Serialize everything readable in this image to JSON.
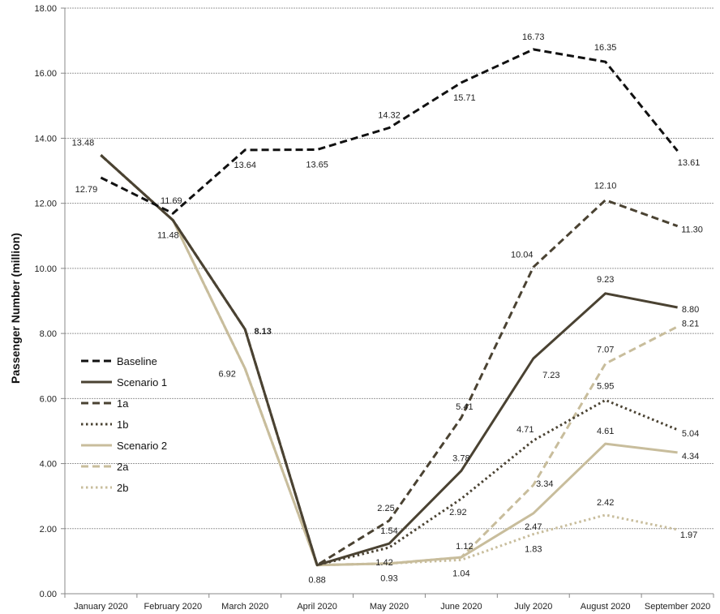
{
  "chart_data": {
    "type": "line",
    "title": "",
    "xlabel": "",
    "ylabel": "Passenger Number (million)",
    "categories": [
      "January 2020",
      "February 2020",
      "March 2020",
      "April 2020",
      "May 2020",
      "June 2020",
      "July 2020",
      "August 2020",
      "September 2020"
    ],
    "ylim": [
      0,
      18
    ],
    "yticks": [
      "0.00",
      "2.00",
      "4.00",
      "6.00",
      "8.00",
      "10.00",
      "12.00",
      "14.00",
      "16.00",
      "18.00"
    ],
    "grid": true,
    "legend_position": "left-middle",
    "series": [
      {
        "name": "Baseline",
        "color": "#111111",
        "dash": "dashed",
        "values": [
          12.79,
          11.69,
          13.64,
          13.65,
          14.32,
          15.71,
          16.73,
          16.35,
          13.61
        ],
        "labels": [
          "12.79",
          "11.69",
          "13.64",
          "13.65",
          "14.32",
          "15.71",
          "16.73",
          "16.35",
          "13.61"
        ]
      },
      {
        "name": "Scenario 1",
        "color": "#4a4232",
        "dash": "solid",
        "values": [
          13.48,
          11.48,
          8.13,
          0.88,
          1.54,
          3.78,
          7.23,
          9.23,
          8.8
        ],
        "labels": [
          "13.48",
          "11.48",
          "8.13",
          "0.88",
          "1.54",
          "3.78",
          "7.23",
          "9.23",
          "8.80"
        ]
      },
      {
        "name": "1a",
        "color": "#4a4232",
        "dash": "dashed",
        "values": [
          13.48,
          11.48,
          8.13,
          0.88,
          2.25,
          5.41,
          10.04,
          12.1,
          11.3
        ],
        "labels": [
          "",
          "",
          "",
          "",
          "2.25",
          "5.41",
          "10.04",
          "12.10",
          "11.30"
        ]
      },
      {
        "name": "1b",
        "color": "#4a4232",
        "dash": "dotted",
        "values": [
          13.48,
          11.48,
          8.13,
          0.88,
          1.42,
          2.92,
          4.71,
          5.95,
          5.04
        ],
        "labels": [
          "",
          "",
          "",
          "",
          "1.42",
          "2.92",
          "4.71",
          "5.95",
          "5.04"
        ]
      },
      {
        "name": "Scenario 2",
        "color": "#c8bd9c",
        "dash": "solid",
        "values": [
          13.48,
          11.48,
          6.92,
          0.88,
          0.93,
          1.12,
          2.47,
          4.61,
          4.34
        ],
        "labels": [
          "",
          "",
          "6.92",
          "",
          "0.93",
          "1.12",
          "2.47",
          "4.61",
          "4.34"
        ]
      },
      {
        "name": "2a",
        "color": "#c8bd9c",
        "dash": "dashed",
        "values": [
          13.48,
          11.48,
          6.92,
          0.88,
          0.93,
          1.12,
          3.34,
          7.07,
          8.21
        ],
        "labels": [
          "",
          "",
          "",
          "",
          "",
          "",
          "3.34",
          "7.07",
          "8.21"
        ]
      },
      {
        "name": "2b",
        "color": "#c8bd9c",
        "dash": "dotted",
        "values": [
          13.48,
          11.48,
          6.92,
          0.88,
          0.93,
          1.04,
          1.83,
          2.42,
          1.97
        ],
        "labels": [
          "",
          "",
          "",
          "",
          "",
          "1.04",
          "1.83",
          "2.42",
          "1.97"
        ]
      }
    ]
  }
}
